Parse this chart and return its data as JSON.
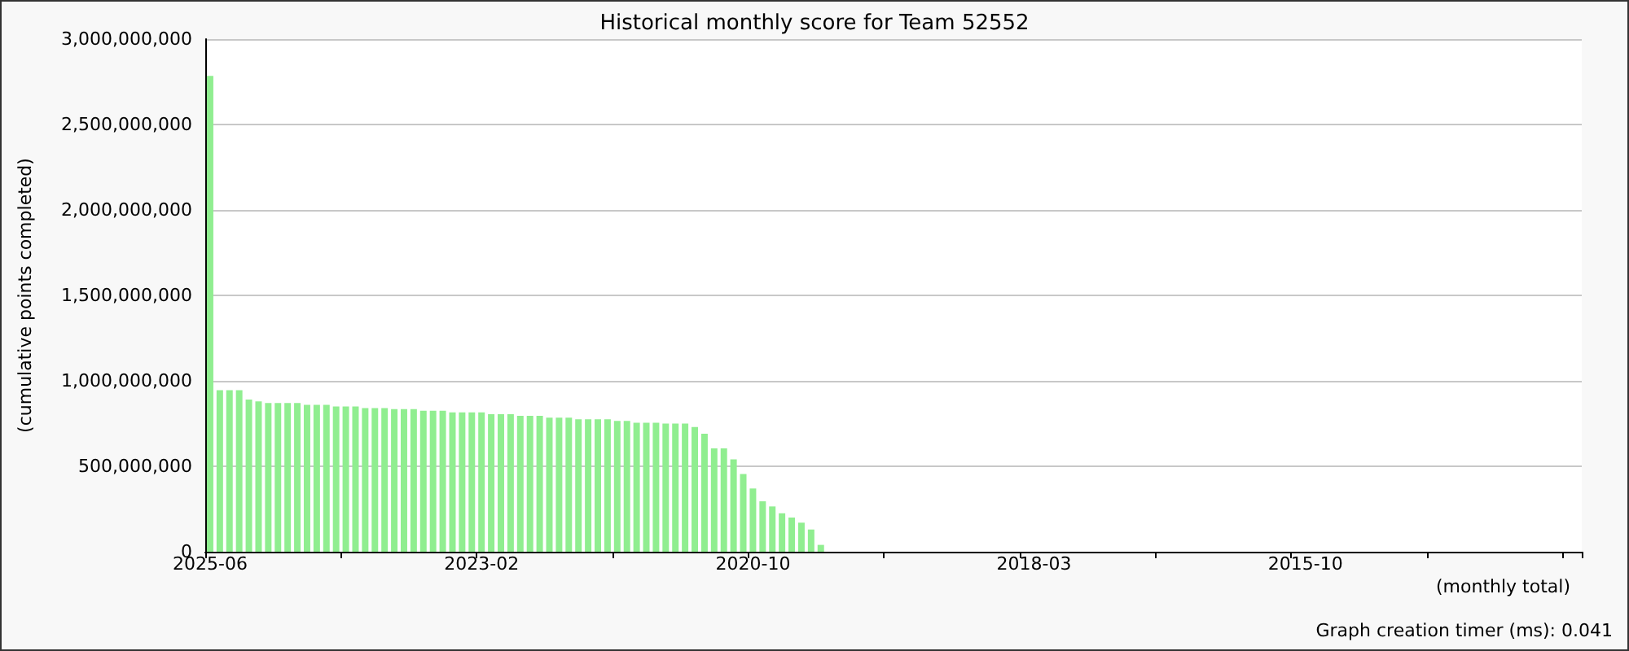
{
  "chart_data": {
    "type": "bar",
    "title": "Historical monthly score for Team 52552",
    "xlabel": "(monthly total)",
    "ylabel": "(cumulative points completed)",
    "annotations": [
      "Graph creation timer (ms): 0.041"
    ],
    "categories": [
      "2025-06",
      null,
      null,
      null,
      null,
      null,
      null,
      null,
      null,
      null,
      null,
      null,
      null,
      null,
      null,
      null,
      null,
      null,
      null,
      null,
      null,
      null,
      null,
      null,
      null,
      null,
      null,
      null,
      "2023-02",
      null,
      null,
      null,
      null,
      null,
      null,
      null,
      null,
      null,
      null,
      null,
      null,
      null,
      null,
      null,
      null,
      null,
      null,
      null,
      null,
      null,
      null,
      null,
      null,
      null,
      null,
      null,
      "2020-10",
      null,
      null,
      null,
      null,
      null,
      null,
      null,
      null,
      null,
      null,
      null,
      null,
      null,
      null,
      null,
      null,
      null,
      null,
      null,
      null,
      null,
      null,
      null,
      null,
      null,
      null,
      null,
      null,
      "2018-03",
      null,
      null,
      null,
      null,
      null,
      null,
      null,
      null,
      null,
      null,
      null,
      null,
      null,
      null,
      null,
      null,
      null,
      null,
      null,
      null,
      null,
      null,
      null,
      null,
      null,
      null,
      null,
      "2015-10",
      null,
      null,
      null,
      null,
      null,
      null,
      null,
      null,
      null,
      null,
      null,
      null,
      null,
      null,
      null,
      null,
      null,
      null,
      null,
      null,
      null,
      null,
      null,
      null,
      null,
      null,
      null,
      null
    ],
    "values": [
      2785000000,
      945000000,
      945000000,
      945000000,
      890000000,
      880000000,
      870000000,
      870000000,
      870000000,
      870000000,
      860000000,
      860000000,
      860000000,
      850000000,
      850000000,
      850000000,
      840000000,
      840000000,
      840000000,
      835000000,
      835000000,
      835000000,
      825000000,
      825000000,
      825000000,
      815000000,
      815000000,
      815000000,
      815000000,
      805000000,
      805000000,
      805000000,
      795000000,
      795000000,
      795000000,
      785000000,
      785000000,
      785000000,
      775000000,
      775000000,
      775000000,
      775000000,
      765000000,
      765000000,
      755000000,
      755000000,
      755000000,
      750000000,
      750000000,
      750000000,
      730000000,
      690000000,
      605000000,
      605000000,
      540000000,
      455000000,
      370000000,
      295000000,
      265000000,
      225000000,
      200000000,
      170000000,
      130000000,
      40000000,
      0,
      0,
      0,
      0,
      0,
      0,
      0,
      0,
      0,
      0,
      0,
      0,
      0,
      0,
      0,
      0,
      0,
      0,
      0,
      0,
      0,
      0,
      0,
      0,
      0,
      0,
      0,
      0,
      0,
      0,
      0,
      0,
      0,
      0,
      0,
      0,
      0,
      0,
      0,
      0,
      0,
      0,
      0,
      0,
      0,
      0,
      0,
      0,
      0,
      0,
      0,
      0,
      0,
      0,
      0,
      0,
      0,
      0,
      0,
      0,
      0,
      0,
      0,
      0,
      0,
      0,
      0,
      0,
      0,
      0,
      0,
      0,
      0,
      0,
      0,
      0,
      0,
      0
    ],
    "color": "#90ee90",
    "ylim": [
      0,
      3000000000
    ],
    "yticks": [
      {
        "value": 0,
        "label": "0"
      },
      {
        "value": 500000000,
        "label": "500,000,000"
      },
      {
        "value": 1000000000,
        "label": "1,000,000,000"
      },
      {
        "value": 1500000000,
        "label": "1,500,000,000"
      },
      {
        "value": 2000000000,
        "label": "2,000,000,000"
      },
      {
        "value": 2500000000,
        "label": "2,500,000,000"
      },
      {
        "value": 3000000000,
        "label": "3,000,000,000"
      }
    ],
    "grid": "y"
  }
}
